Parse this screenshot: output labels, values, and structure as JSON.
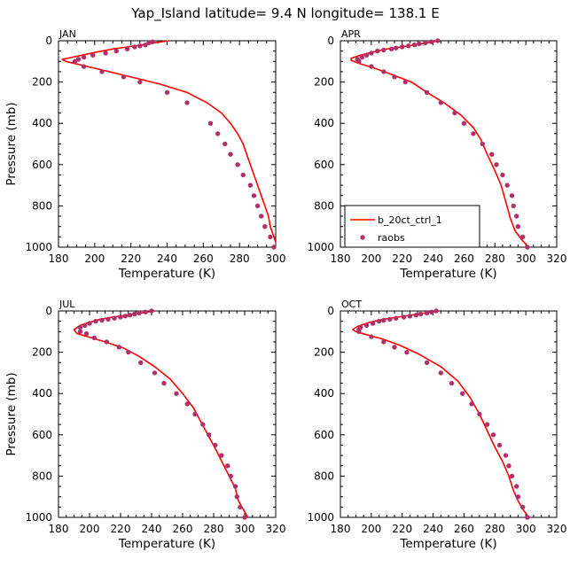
{
  "figure": {
    "title": "Yap_Island  latitude= 9.4 N longitude= 138.1 E"
  },
  "legend": {
    "model_label": "b_20ct_ctrl_1",
    "obs_label": "raobs"
  },
  "chart_data": [
    {
      "type": "line",
      "panel_label": "JAN",
      "xlabel": "Temperature (K)",
      "ylabel": "Pressure (mb)",
      "xlim": [
        180,
        300
      ],
      "ylim": [
        1000,
        0
      ],
      "xticks": [
        "180",
        "200",
        "220",
        "240",
        "260",
        "280",
        "300"
      ],
      "yticks": [
        "0",
        "200",
        "400",
        "600",
        "800",
        "1000"
      ],
      "legend": false,
      "model": {
        "name": "b_20ct_ctrl_1",
        "color": "#ff0000",
        "points": [
          [
            241,
            0
          ],
          [
            233,
            10
          ],
          [
            226,
            20
          ],
          [
            218,
            30
          ],
          [
            210,
            40
          ],
          [
            201,
            55
          ],
          [
            193,
            70
          ],
          [
            182,
            90
          ],
          [
            184,
            100
          ],
          [
            196,
            125
          ],
          [
            208,
            150
          ],
          [
            222,
            180
          ],
          [
            236,
            210
          ],
          [
            251,
            250
          ],
          [
            262,
            300
          ],
          [
            270,
            350
          ],
          [
            275,
            400
          ],
          [
            279,
            450
          ],
          [
            282,
            500
          ],
          [
            284,
            550
          ],
          [
            286,
            600
          ],
          [
            288,
            650
          ],
          [
            290,
            700
          ],
          [
            292,
            750
          ],
          [
            294,
            800
          ],
          [
            296,
            850
          ],
          [
            297,
            900
          ],
          [
            299,
            950
          ],
          [
            301,
            1000
          ]
        ]
      },
      "obs": {
        "name": "raobs",
        "color": "#b0306a",
        "points": [
          [
            232,
            5
          ],
          [
            230,
            10
          ],
          [
            228,
            20
          ],
          [
            225,
            25
          ],
          [
            222,
            30
          ],
          [
            218,
            40
          ],
          [
            212,
            50
          ],
          [
            206,
            60
          ],
          [
            199,
            70
          ],
          [
            194,
            80
          ],
          [
            191,
            90
          ],
          [
            189,
            100
          ],
          [
            194,
            125
          ],
          [
            204,
            150
          ],
          [
            216,
            175
          ],
          [
            225,
            200
          ],
          [
            240,
            250
          ],
          [
            251,
            300
          ],
          [
            264,
            400
          ],
          [
            268,
            450
          ],
          [
            272,
            500
          ],
          [
            275,
            550
          ],
          [
            279,
            600
          ],
          [
            282,
            650
          ],
          [
            286,
            700
          ],
          [
            288,
            750
          ],
          [
            290,
            800
          ],
          [
            292,
            850
          ],
          [
            294,
            900
          ],
          [
            297,
            950
          ],
          [
            299,
            1000
          ]
        ]
      }
    },
    {
      "type": "line",
      "panel_label": "APR",
      "xlabel": "Temperature (K)",
      "ylabel": "",
      "xlim": [
        180,
        320
      ],
      "ylim": [
        1000,
        0
      ],
      "xticks": [
        "180",
        "200",
        "220",
        "240",
        "260",
        "280",
        "300",
        "320"
      ],
      "yticks": [
        "0",
        "200",
        "400",
        "600",
        "800",
        "1000"
      ],
      "legend": true,
      "model": {
        "name": "b_20ct_ctrl_1",
        "color": "#ff0000",
        "points": [
          [
            244,
            0
          ],
          [
            236,
            10
          ],
          [
            228,
            20
          ],
          [
            219,
            30
          ],
          [
            210,
            40
          ],
          [
            201,
            55
          ],
          [
            193,
            70
          ],
          [
            187,
            85
          ],
          [
            187,
            95
          ],
          [
            192,
            110
          ],
          [
            201,
            130
          ],
          [
            212,
            160
          ],
          [
            226,
            200
          ],
          [
            236,
            250
          ],
          [
            247,
            300
          ],
          [
            258,
            360
          ],
          [
            266,
            420
          ],
          [
            271,
            480
          ],
          [
            275,
            550
          ],
          [
            280,
            630
          ],
          [
            284,
            700
          ],
          [
            287,
            780
          ],
          [
            290,
            860
          ],
          [
            293,
            920
          ],
          [
            298,
            970
          ],
          [
            302,
            1000
          ]
        ]
      },
      "obs": {
        "name": "raobs",
        "color": "#b0306a",
        "points": [
          [
            243,
            0
          ],
          [
            239,
            5
          ],
          [
            235,
            10
          ],
          [
            231,
            15
          ],
          [
            228,
            20
          ],
          [
            224,
            25
          ],
          [
            220,
            30
          ],
          [
            216,
            35
          ],
          [
            213,
            40
          ],
          [
            208,
            45
          ],
          [
            204,
            50
          ],
          [
            200,
            60
          ],
          [
            197,
            70
          ],
          [
            194,
            80
          ],
          [
            191,
            90
          ],
          [
            192,
            100
          ],
          [
            200,
            125
          ],
          [
            208,
            150
          ],
          [
            215,
            175
          ],
          [
            222,
            200
          ],
          [
            236,
            250
          ],
          [
            245,
            300
          ],
          [
            254,
            350
          ],
          [
            260,
            400
          ],
          [
            266,
            450
          ],
          [
            272,
            500
          ],
          [
            278,
            550
          ],
          [
            281,
            600
          ],
          [
            285,
            650
          ],
          [
            288,
            700
          ],
          [
            291,
            750
          ],
          [
            292,
            800
          ],
          [
            294,
            850
          ],
          [
            295,
            900
          ],
          [
            298,
            950
          ],
          [
            301,
            1000
          ]
        ]
      }
    },
    {
      "type": "line",
      "panel_label": "JUL",
      "xlabel": "Temperature (K)",
      "ylabel": "Pressure (mb)",
      "xlim": [
        180,
        320
      ],
      "ylim": [
        1000,
        0
      ],
      "xticks": [
        "180",
        "200",
        "220",
        "240",
        "260",
        "280",
        "300",
        "320"
      ],
      "yticks": [
        "0",
        "200",
        "400",
        "600",
        "800",
        "1000"
      ],
      "legend": false,
      "model": {
        "name": "b_20ct_ctrl_1",
        "color": "#ff0000",
        "points": [
          [
            242,
            0
          ],
          [
            233,
            10
          ],
          [
            224,
            20
          ],
          [
            215,
            30
          ],
          [
            207,
            40
          ],
          [
            200,
            55
          ],
          [
            194,
            70
          ],
          [
            190,
            90
          ],
          [
            192,
            110
          ],
          [
            199,
            125
          ],
          [
            210,
            150
          ],
          [
            222,
            180
          ],
          [
            232,
            220
          ],
          [
            242,
            270
          ],
          [
            252,
            330
          ],
          [
            260,
            400
          ],
          [
            267,
            470
          ],
          [
            272,
            540
          ],
          [
            277,
            610
          ],
          [
            282,
            680
          ],
          [
            286,
            740
          ],
          [
            290,
            800
          ],
          [
            294,
            860
          ],
          [
            296,
            920
          ],
          [
            299,
            960
          ],
          [
            302,
            1000
          ]
        ]
      },
      "obs": {
        "name": "raobs",
        "color": "#b0306a",
        "points": [
          [
            240,
            0
          ],
          [
            236,
            5
          ],
          [
            232,
            10
          ],
          [
            229,
            15
          ],
          [
            226,
            20
          ],
          [
            223,
            25
          ],
          [
            220,
            30
          ],
          [
            216,
            35
          ],
          [
            212,
            40
          ],
          [
            208,
            45
          ],
          [
            204,
            50
          ],
          [
            200,
            60
          ],
          [
            197,
            70
          ],
          [
            194,
            80
          ],
          [
            194,
            100
          ],
          [
            198,
            110
          ],
          [
            203,
            130
          ],
          [
            211,
            150
          ],
          [
            219,
            175
          ],
          [
            225,
            200
          ],
          [
            233,
            250
          ],
          [
            242,
            300
          ],
          [
            248,
            350
          ],
          [
            256,
            400
          ],
          [
            263,
            450
          ],
          [
            268,
            500
          ],
          [
            273,
            550
          ],
          [
            277,
            600
          ],
          [
            281,
            650
          ],
          [
            285,
            700
          ],
          [
            289,
            750
          ],
          [
            291,
            800
          ],
          [
            294,
            850
          ],
          [
            295,
            900
          ],
          [
            297,
            950
          ],
          [
            300,
            1000
          ]
        ]
      }
    },
    {
      "type": "line",
      "panel_label": "OCT",
      "xlabel": "Temperature (K)",
      "ylabel": "",
      "xlim": [
        180,
        320
      ],
      "ylim": [
        1000,
        0
      ],
      "xticks": [
        "180",
        "200",
        "220",
        "240",
        "260",
        "280",
        "300",
        "320"
      ],
      "yticks": [
        "0",
        "200",
        "400",
        "600",
        "800",
        "1000"
      ],
      "legend": false,
      "model": {
        "name": "b_20ct_ctrl_1",
        "color": "#ff0000",
        "points": [
          [
            244,
            0
          ],
          [
            235,
            10
          ],
          [
            226,
            20
          ],
          [
            217,
            30
          ],
          [
            208,
            40
          ],
          [
            199,
            55
          ],
          [
            191,
            75
          ],
          [
            188,
            90
          ],
          [
            190,
            100
          ],
          [
            197,
            115
          ],
          [
            207,
            135
          ],
          [
            218,
            165
          ],
          [
            231,
            210
          ],
          [
            245,
            270
          ],
          [
            256,
            340
          ],
          [
            264,
            420
          ],
          [
            270,
            500
          ],
          [
            275,
            580
          ],
          [
            280,
            660
          ],
          [
            285,
            730
          ],
          [
            289,
            800
          ],
          [
            292,
            870
          ],
          [
            295,
            920
          ],
          [
            298,
            960
          ],
          [
            302,
            1000
          ]
        ]
      },
      "obs": {
        "name": "raobs",
        "color": "#b0306a",
        "points": [
          [
            242,
            0
          ],
          [
            239,
            5
          ],
          [
            236,
            10
          ],
          [
            232,
            15
          ],
          [
            229,
            20
          ],
          [
            225,
            25
          ],
          [
            221,
            30
          ],
          [
            216,
            35
          ],
          [
            212,
            40
          ],
          [
            208,
            45
          ],
          [
            205,
            50
          ],
          [
            201,
            60
          ],
          [
            197,
            70
          ],
          [
            193,
            80
          ],
          [
            192,
            90
          ],
          [
            192,
            100
          ],
          [
            200,
            125
          ],
          [
            208,
            150
          ],
          [
            215,
            175
          ],
          [
            223,
            200
          ],
          [
            236,
            250
          ],
          [
            245,
            300
          ],
          [
            252,
            350
          ],
          [
            259,
            400
          ],
          [
            265,
            450
          ],
          [
            270,
            500
          ],
          [
            275,
            550
          ],
          [
            279,
            600
          ],
          [
            283,
            650
          ],
          [
            287,
            700
          ],
          [
            289,
            750
          ],
          [
            291,
            800
          ],
          [
            294,
            850
          ],
          [
            295,
            900
          ],
          [
            298,
            950
          ],
          [
            301,
            1000
          ]
        ]
      }
    }
  ]
}
